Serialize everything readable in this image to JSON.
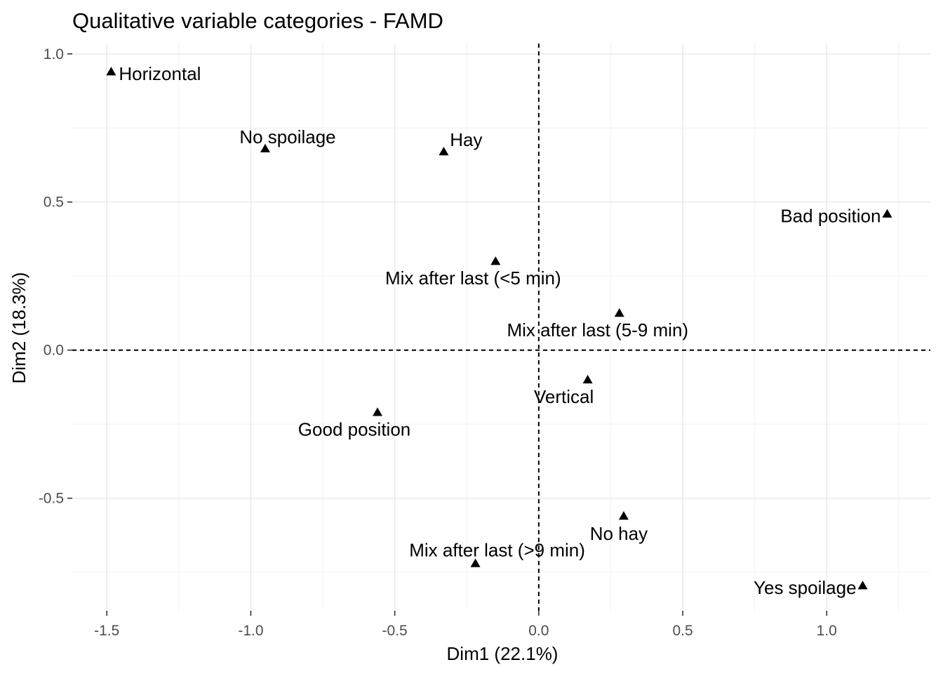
{
  "chart_data": {
    "type": "scatter",
    "title": "Qualitative variable categories - FAMD",
    "xlabel": "Dim1 (22.1%)",
    "ylabel": "Dim2 (18.3%)",
    "xlim": [
      -1.62,
      1.36
    ],
    "ylim": [
      -0.88,
      1.035
    ],
    "xticks": [
      -1.5,
      -1.0,
      -0.5,
      0.0,
      0.5,
      1.0
    ],
    "xtick_labels": [
      "-1.5",
      "-1.0",
      "-0.5",
      "0.0",
      "0.5",
      "1.0"
    ],
    "yticks": [
      -0.5,
      0.0,
      0.5,
      1.0
    ],
    "ytick_labels": [
      "-0.5",
      "0.0",
      "0.5",
      "1.0"
    ],
    "grid": true,
    "reference_lines": {
      "x": 0,
      "y": 0,
      "style": "dashed"
    },
    "marker": "triangle",
    "marker_color": "#000000",
    "points": [
      {
        "label": "Horizontal",
        "x": -1.485,
        "y": 0.94,
        "label_pos": "right"
      },
      {
        "label": "No spoilage",
        "x": -0.95,
        "y": 0.68,
        "label_pos": "above-right"
      },
      {
        "label": "Hay",
        "x": -0.33,
        "y": 0.67,
        "label_pos": "above-right"
      },
      {
        "label": "Bad position",
        "x": 1.21,
        "y": 0.46,
        "label_pos": "left"
      },
      {
        "label": "Mix after last (<5 min)",
        "x": -0.15,
        "y": 0.3,
        "label_pos": "below"
      },
      {
        "label": "Mix after last (5-9 min)",
        "x": 0.28,
        "y": 0.125,
        "label_pos": "below"
      },
      {
        "label": "Vertical",
        "x": 0.17,
        "y": -0.1,
        "label_pos": "below-left"
      },
      {
        "label": "Good position",
        "x": -0.56,
        "y": -0.21,
        "label_pos": "below"
      },
      {
        "label": "No hay",
        "x": 0.295,
        "y": -0.56,
        "label_pos": "below"
      },
      {
        "label": "Mix after last (>9 min)",
        "x": -0.22,
        "y": -0.72,
        "label_pos": "above"
      },
      {
        "label": "Yes spoilage",
        "x": 1.125,
        "y": -0.795,
        "label_pos": "left"
      }
    ]
  }
}
